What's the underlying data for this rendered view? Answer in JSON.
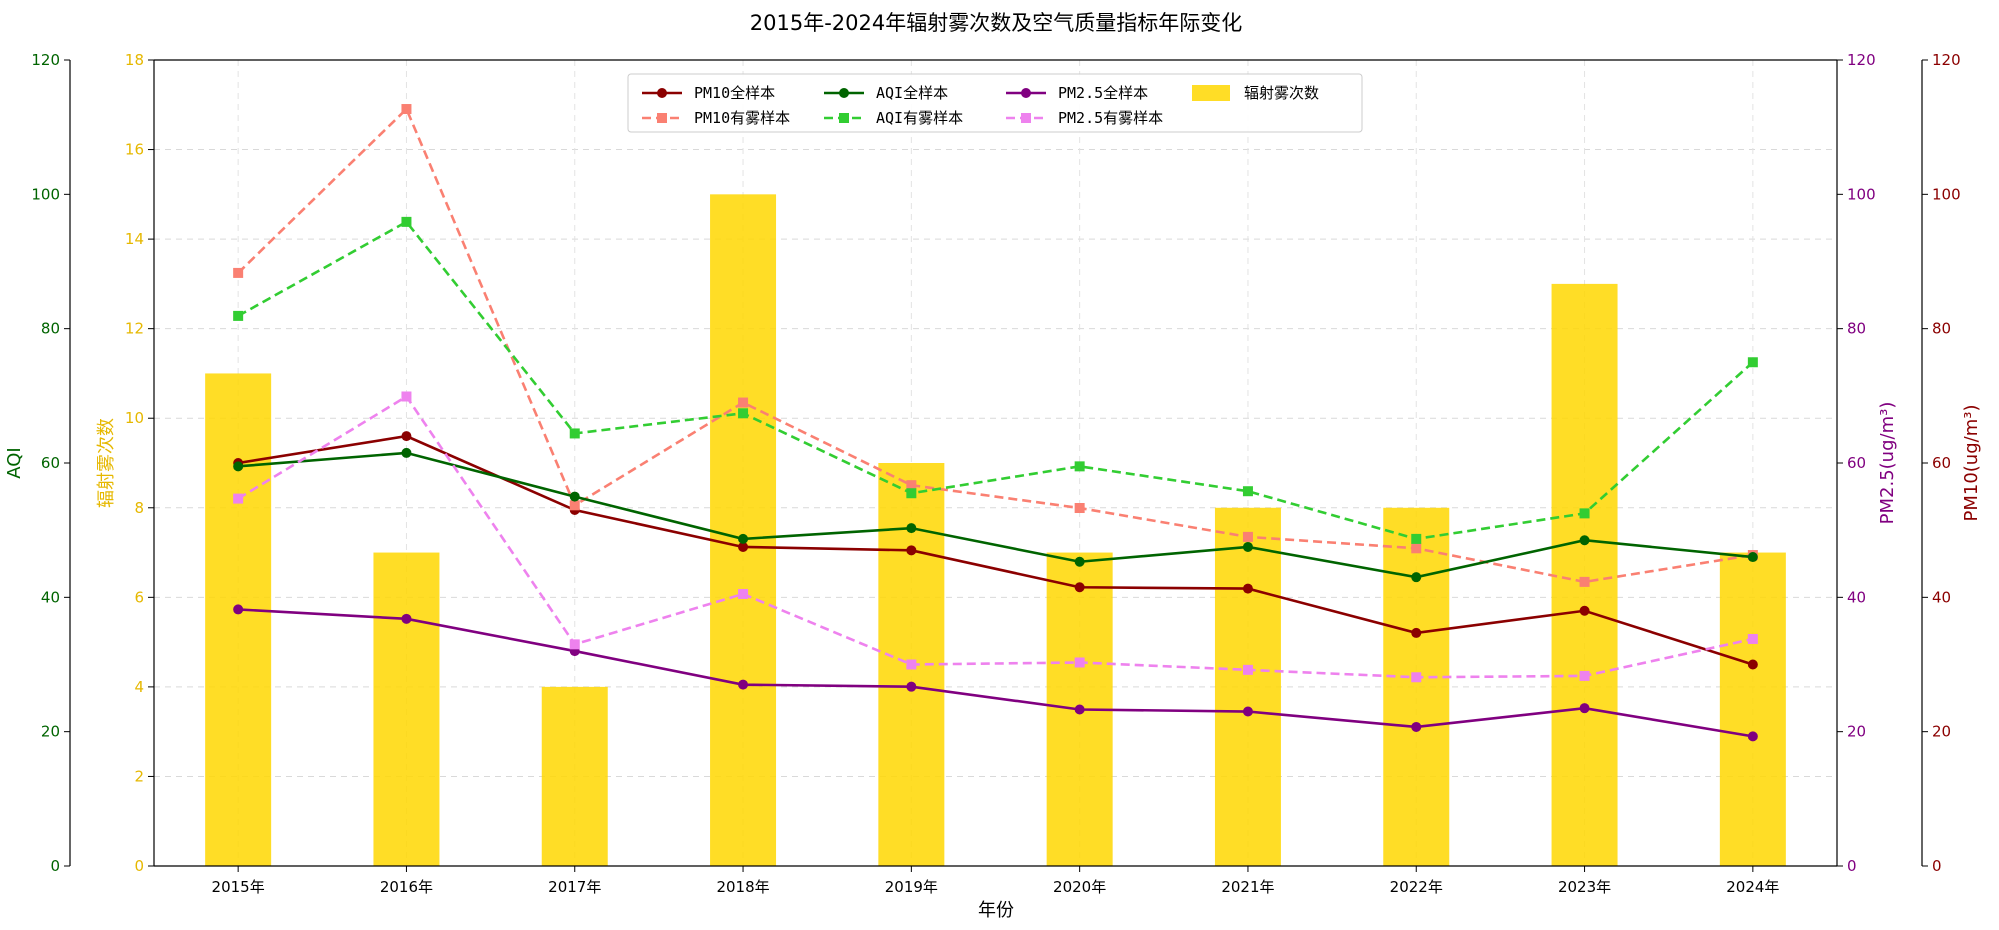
{
  "chart_data": {
    "type": "bar+line",
    "title": "2015年-2024年辐射雾次数及空气质量指标年际变化",
    "xlabel": "年份",
    "categories": [
      "2015年",
      "2016年",
      "2017年",
      "2018年",
      "2019年",
      "2020年",
      "2021年",
      "2022年",
      "2023年",
      "2024年"
    ],
    "grid": true,
    "legend_position": "top-center",
    "axes": {
      "aqi": {
        "label": "AQI",
        "range": [
          0,
          120
        ],
        "ticks": [
          "0",
          "20",
          "40",
          "60",
          "80",
          "100",
          "120"
        ],
        "color": "#006400"
      },
      "fog": {
        "label": "辐射雾次数",
        "range": [
          0,
          18
        ],
        "ticks": [
          "0",
          "2",
          "4",
          "6",
          "8",
          "10",
          "12",
          "14",
          "16",
          "18"
        ],
        "color": "#FFD700"
      },
      "pm25": {
        "label": "PM2.5(ug/m³)",
        "range": [
          0,
          120
        ],
        "ticks": [
          "0",
          "20",
          "40",
          "60",
          "80",
          "100",
          "120"
        ],
        "color": "#800080"
      },
      "pm10": {
        "label": "PM10(ug/m³)",
        "range": [
          0,
          120
        ],
        "ticks": [
          "0",
          "20",
          "40",
          "60",
          "80",
          "100",
          "120"
        ],
        "color": "#8B0000"
      }
    },
    "bars": {
      "name": "辐射雾次数",
      "axis": "fog",
      "color": "#FFD700",
      "values": [
        11,
        7,
        4,
        15,
        9,
        7,
        8,
        8,
        13,
        7
      ]
    },
    "series": [
      {
        "name": "PM10全样本",
        "axis": "pm10",
        "color": "#8B0000",
        "style": "solid",
        "marker": "circle",
        "values": [
          60,
          64,
          53,
          47.5,
          47,
          41.5,
          41.3,
          34.7,
          38,
          30
        ]
      },
      {
        "name": "PM10有雾样本",
        "axis": "pm10",
        "color": "#FA8072",
        "style": "dashed",
        "marker": "square",
        "values": [
          88.3,
          112.7,
          53.7,
          69,
          56.7,
          53.3,
          49,
          47.3,
          42.3,
          46.3
        ]
      },
      {
        "name": "AQI全样本",
        "axis": "aqi",
        "color": "#006400",
        "style": "solid",
        "marker": "circle",
        "values": [
          59.5,
          61.5,
          55,
          48.7,
          50.3,
          45.3,
          47.5,
          43,
          48.5,
          46
        ]
      },
      {
        "name": "AQI有雾样本",
        "axis": "aqi",
        "color": "#32CD32",
        "style": "dashed",
        "marker": "square",
        "values": [
          81.9,
          95.9,
          64.4,
          67.4,
          55.5,
          59.5,
          55.8,
          48.7,
          52.5,
          75
        ]
      },
      {
        "name": "PM2.5全样本",
        "axis": "pm25",
        "color": "#800080",
        "style": "solid",
        "marker": "circle",
        "values": [
          38.2,
          36.8,
          32,
          27,
          26.7,
          23.3,
          23,
          20.7,
          23.5,
          19.3
        ]
      },
      {
        "name": "PM2.5有雾样本",
        "axis": "pm25",
        "color": "#EE82EE",
        "style": "dashed",
        "marker": "square",
        "values": [
          54.7,
          69.9,
          33,
          40.5,
          30,
          30.3,
          29.2,
          28.1,
          28.3,
          33.8
        ]
      }
    ]
  }
}
